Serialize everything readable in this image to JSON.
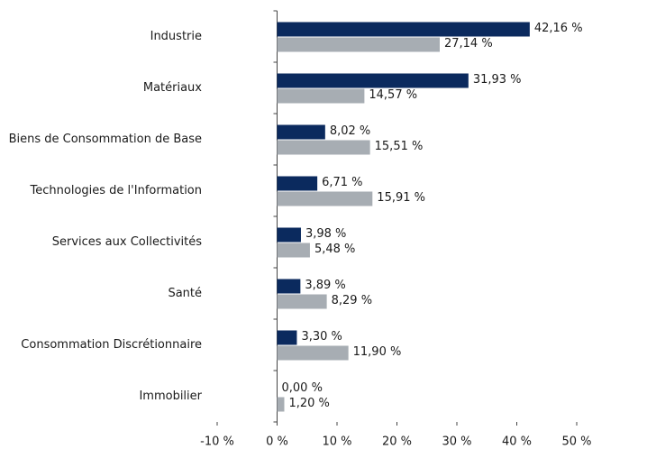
{
  "chart_data": {
    "type": "hbar",
    "categories": [
      "Industrie",
      "Matériaux",
      "Biens de Consommation de Base",
      "Technologies de l'Information",
      "Services aux Collectivités",
      "Santé",
      "Consommation Discrétionnaire",
      "Immobilier"
    ],
    "series": [
      {
        "color": "#0b2a5e",
        "values": [
          42.16,
          31.93,
          8.02,
          6.71,
          3.98,
          3.89,
          3.3,
          0.0
        ],
        "value_labels": [
          "42,16 %",
          "31,93 %",
          "8,02 %",
          "6,71 %",
          "3,98 %",
          "3,89 %",
          "3,30 %",
          "0,00 %"
        ]
      },
      {
        "color": "#a7adb3",
        "values": [
          27.14,
          14.57,
          15.51,
          15.91,
          5.48,
          8.29,
          11.9,
          1.2
        ],
        "value_labels": [
          "27,14 %",
          "14,57 %",
          "15,51 %",
          "15,91 %",
          "5,48 %",
          "8,29 %",
          "11,90 %",
          "1,20 %"
        ]
      }
    ],
    "xlim": [
      -10,
      50
    ],
    "xticks": [
      {
        "value": -10,
        "label": "-10 %"
      },
      {
        "value": 0,
        "label": "0 %"
      },
      {
        "value": 10,
        "label": "10 %"
      },
      {
        "value": 20,
        "label": "20 %"
      },
      {
        "value": 30,
        "label": "30 %"
      },
      {
        "value": 40,
        "label": "40 %"
      },
      {
        "value": 50,
        "label": "50 %"
      }
    ]
  }
}
